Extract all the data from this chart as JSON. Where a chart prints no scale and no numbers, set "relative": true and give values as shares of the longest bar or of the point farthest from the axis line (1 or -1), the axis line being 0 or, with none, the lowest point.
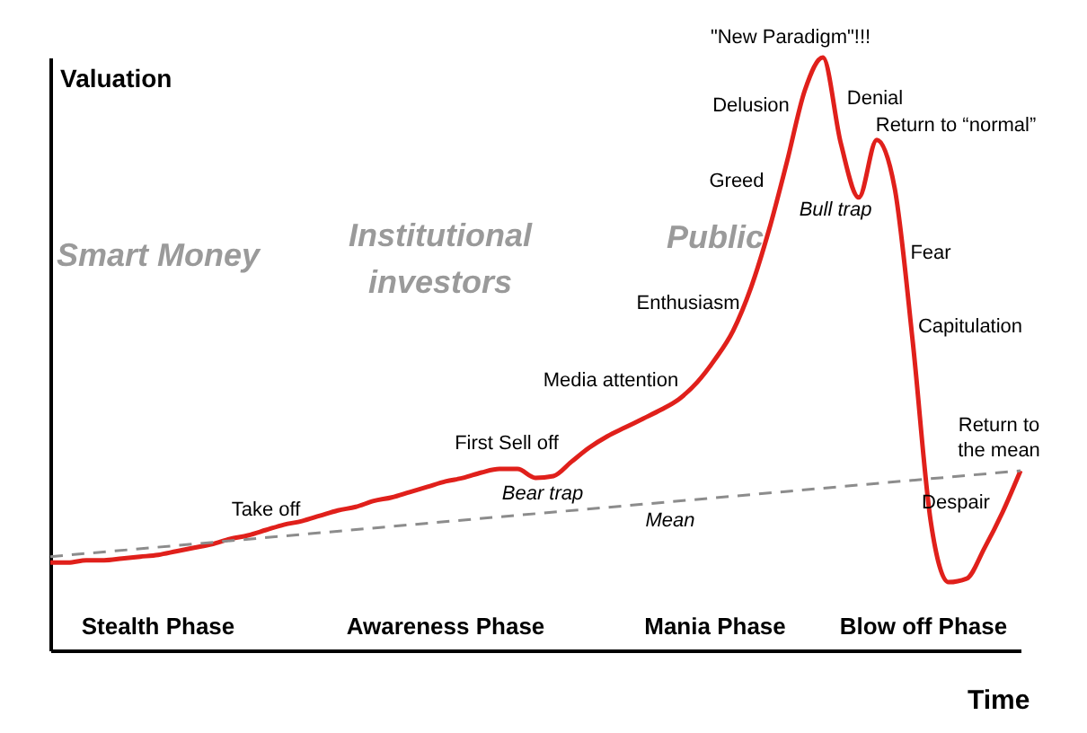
{
  "chart_data": {
    "type": "line",
    "relative": true,
    "xlabel": "Time",
    "ylabel": "Valuation",
    "grid": false,
    "legend": false,
    "categories": [
      null,
      null,
      null,
      null,
      null,
      null,
      null,
      null,
      null,
      null,
      null,
      null,
      null,
      null,
      null,
      null,
      null,
      null,
      null,
      null,
      null,
      null,
      null,
      null,
      null,
      null,
      null,
      null,
      null,
      null,
      null,
      null,
      null,
      null,
      null,
      null,
      null,
      null,
      null,
      null,
      null,
      null,
      null,
      null,
      null,
      null,
      null,
      null,
      null,
      null,
      null,
      null,
      null,
      null,
      null
    ],
    "series": [
      {
        "color": "#e0201b",
        "line_style": "solid",
        "values": [
          0.148,
          0.148,
          0.152,
          0.152,
          0.155,
          0.158,
          0.161,
          0.167,
          0.173,
          0.179,
          0.188,
          0.194,
          0.203,
          0.212,
          0.218,
          0.227,
          0.236,
          0.242,
          0.252,
          0.258,
          0.267,
          0.276,
          0.285,
          0.291,
          0.3,
          0.306,
          0.306,
          0.291,
          0.294,
          0.318,
          0.342,
          0.361,
          0.376,
          0.391,
          0.406,
          0.424,
          0.452,
          0.491,
          0.539,
          0.612,
          0.709,
          0.824,
          0.945,
          1,
          0.855,
          0.764,
          0.861,
          0.779,
          0.521,
          0.218,
          0.115,
          0.121,
          0.173,
          0.233,
          0.303
        ]
      },
      {
        "name": "Mean",
        "color": "#8c8c8c",
        "line_style": "dashed",
        "values": [
          0.158,
          null,
          null,
          null,
          null,
          null,
          null,
          null,
          null,
          null,
          null,
          null,
          null,
          null,
          null,
          null,
          null,
          null,
          null,
          null,
          null,
          null,
          null,
          null,
          null,
          null,
          null,
          null,
          null,
          null,
          null,
          null,
          null,
          null,
          null,
          null,
          null,
          null,
          null,
          null,
          null,
          null,
          null,
          null,
          null,
          null,
          null,
          null,
          null,
          null,
          null,
          null,
          null,
          null,
          0.303
        ]
      }
    ],
    "annotations": [
      "Smart Money",
      "Institutional investors",
      "Public",
      "Take off",
      "First Sell off",
      "Bear trap",
      "Media attention",
      "Enthusiasm",
      "Greed",
      "Delusion",
      "\"New Paradigm\"!!!",
      "Denial",
      "Bull trap",
      "Return to “normal”",
      "Fear",
      "Capitulation",
      "Despair",
      "Return to the mean",
      "Stealth Phase",
      "Awareness Phase",
      "Mania Phase",
      "Blow off Phase"
    ]
  }
}
